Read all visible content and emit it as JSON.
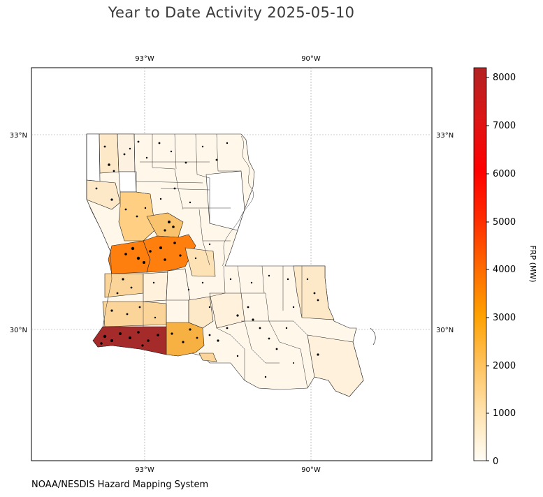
{
  "title": "Year to Date Activity 2025-05-10",
  "footer": "NOAA/NESDIS Hazard Mapping System",
  "map": {
    "lon_labels": [
      "93°W",
      "90°W"
    ],
    "lat_labels": [
      "33°N",
      "30°N"
    ],
    "gridlines": true
  },
  "colorbar": {
    "label": "FRP (MW)",
    "ticks": [
      "8000",
      "7000",
      "6000",
      "5000",
      "4000",
      "3000",
      "2000",
      "1000",
      "0"
    ],
    "min": 0,
    "max": 8180,
    "colors": [
      "#fffdf6",
      "#ffd58a",
      "#ffa100",
      "#ff6a00",
      "#ff0000",
      "#b22222"
    ]
  },
  "parish_fill_colors": {
    "calcasieu": "#a52a2a",
    "vernon_rapides": "#ff7f0e",
    "natchitoches": "#ffd083",
    "jefferson_davis": "#f7b042",
    "beauregard": "#fbd49a",
    "low": "#fff5e6",
    "none": "#ffffff"
  }
}
